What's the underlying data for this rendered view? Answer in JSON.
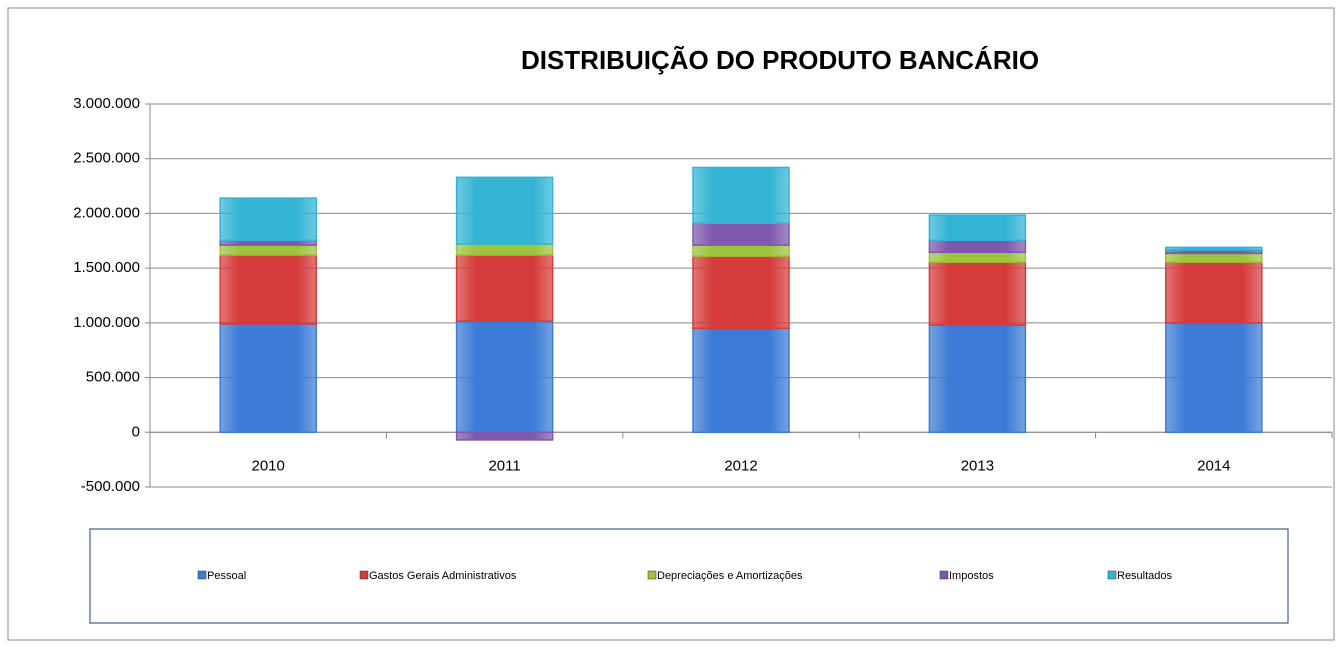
{
  "chart_data": {
    "type": "stacked_bar",
    "title": "DISTRIBUIÇÃO DO PRODUTO BANCÁRIO",
    "categories": [
      "2010",
      "2011",
      "2012",
      "2013",
      "2014"
    ],
    "series": [
      {
        "name": "Pessoal",
        "color": "#3d7bd6",
        "values": [
          990000,
          1015000,
          950000,
          980000,
          1000000
        ]
      },
      {
        "name": "Gastos Gerais Administrativos",
        "color": "#d63b3b",
        "values": [
          630000,
          605000,
          660000,
          575000,
          555000
        ]
      },
      {
        "name": "Depreciações e Amortizações",
        "color": "#9cc43c",
        "values": [
          90000,
          100000,
          100000,
          90000,
          80000
        ]
      },
      {
        "name": "Impostos",
        "color": "#7f58ae",
        "values": [
          45000,
          -70000,
          200000,
          110000,
          30000
        ]
      },
      {
        "name": "Resultados",
        "color": "#33b4d4",
        "values": [
          385000,
          610000,
          510000,
          230000,
          25000
        ]
      }
    ],
    "ylim": [
      -500000,
      3000000
    ],
    "yticks": [
      {
        "value": -500000,
        "label": "-500.000"
      },
      0,
      {
        "value": 500000,
        "label": "500.000"
      },
      {
        "value": 1000000,
        "label": "1.000.000"
      },
      {
        "value": 1500000,
        "label": "1.500.000"
      },
      {
        "value": 2000000,
        "label": "2.000.000"
      },
      {
        "value": 2500000,
        "label": "2.500.000"
      },
      {
        "value": 3000000,
        "label": "3.000.000"
      }
    ],
    "grid": true,
    "legend": "bottom"
  }
}
